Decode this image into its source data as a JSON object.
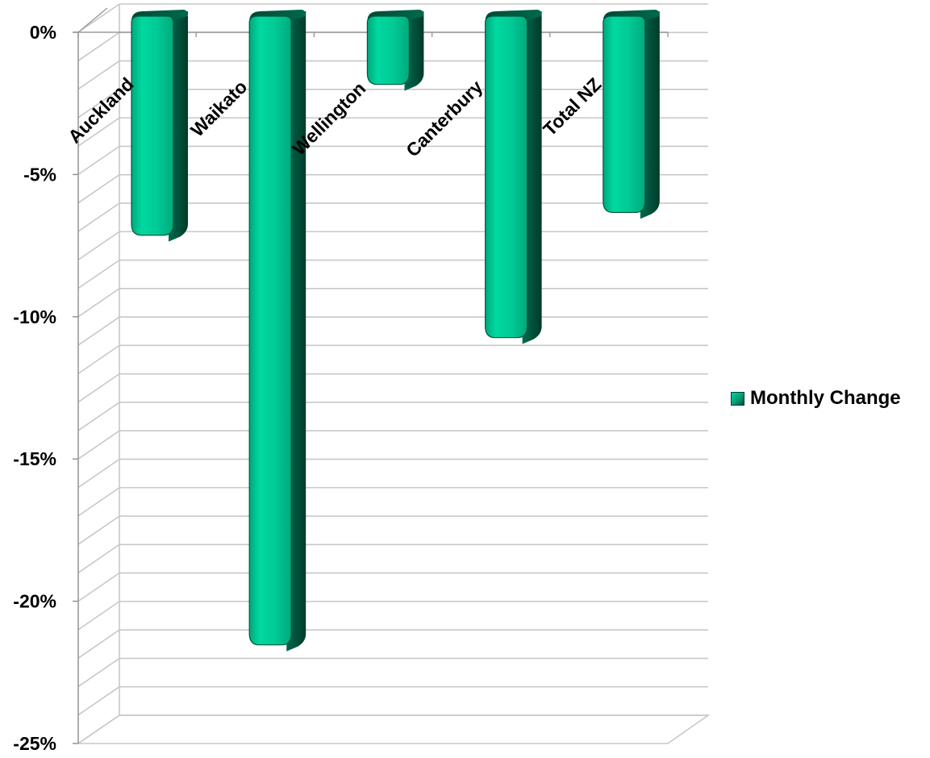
{
  "chart_data": {
    "type": "bar",
    "categories": [
      "Auckland",
      "Waikato",
      "Wellington",
      "Canterbury",
      "Total NZ"
    ],
    "series": [
      {
        "name": "Monthly Change",
        "values": [
          -7.7,
          -22.1,
          -2.4,
          -11.3,
          -6.9
        ]
      }
    ],
    "yticks": [
      0,
      -5,
      -10,
      -15,
      -20,
      -25
    ],
    "ytick_labels": [
      "0%",
      "-5%",
      "-10%",
      "-15%",
      "-20%",
      "-25%"
    ],
    "ylim": [
      -25,
      0
    ],
    "grid": true,
    "legend": "right",
    "colors": {
      "bar": "#00c995",
      "bar_side": "#00573f",
      "grid": "#c8c8c8"
    }
  }
}
